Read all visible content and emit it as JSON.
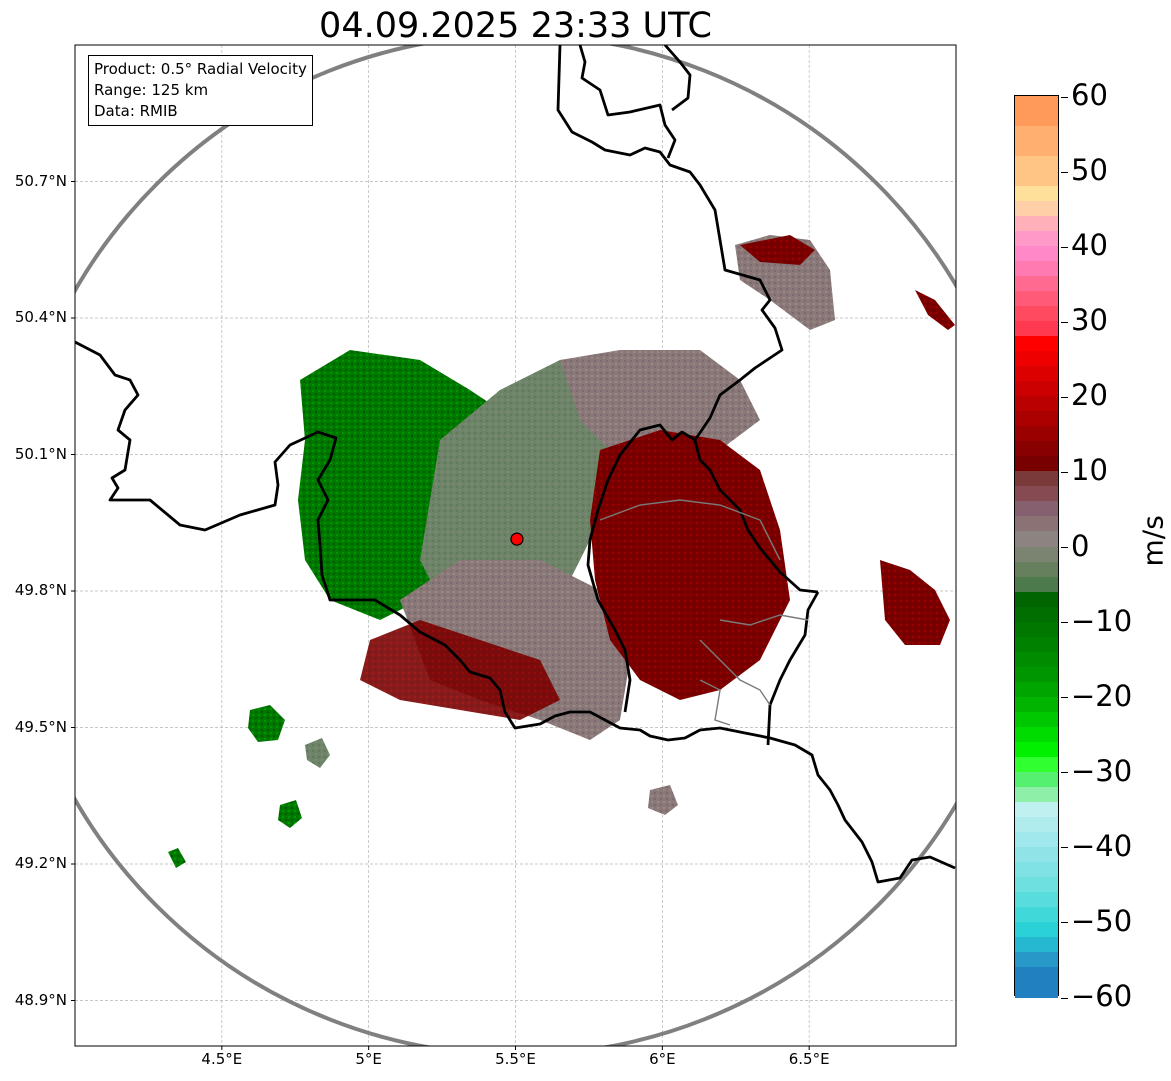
{
  "title": "04.09.2025 23:33 UTC",
  "info": {
    "product": "Product: 0.5° Radial Velocity",
    "range": "Range: 125 km",
    "data": "Data: RMIB"
  },
  "axes": {
    "lat_labels": [
      "50.7°N",
      "50.4°N",
      "50.1°N",
      "49.8°N",
      "49.5°N",
      "49.2°N",
      "48.9°N"
    ],
    "lon_labels": [
      "4.5°E",
      "5°E",
      "5.5°E",
      "6°E",
      "6.5°E"
    ],
    "lat_values": [
      50.7,
      50.4,
      50.1,
      49.8,
      49.5,
      49.2,
      48.9
    ],
    "lon_values": [
      4.5,
      5.0,
      5.5,
      6.0,
      6.5
    ],
    "lon_range": [
      4.0,
      7.0
    ],
    "lat_range": [
      48.8,
      51.0
    ],
    "grid": true
  },
  "radar_site": {
    "lon": 5.505,
    "lat": 49.914
  },
  "range_ring_km": 125,
  "colorbar": {
    "unit": "m/s",
    "vmin": -60,
    "vmax": 60,
    "ticks": [
      {
        "value": 60,
        "label": "60"
      },
      {
        "value": 50,
        "label": "50"
      },
      {
        "value": 40,
        "label": "40"
      },
      {
        "value": 30,
        "label": "30"
      },
      {
        "value": 20,
        "label": "20"
      },
      {
        "value": 10,
        "label": "10"
      },
      {
        "value": 0,
        "label": "0"
      },
      {
        "value": -10,
        "label": "−10"
      },
      {
        "value": -20,
        "label": "−20"
      },
      {
        "value": -30,
        "label": "−30"
      },
      {
        "value": -40,
        "label": "−40"
      },
      {
        "value": -50,
        "label": "−50"
      },
      {
        "value": -60,
        "label": "−60"
      }
    ],
    "bands": [
      {
        "from": 56,
        "to": 60,
        "color": "#ff9a5a"
      },
      {
        "from": 52,
        "to": 56,
        "color": "#ffb070"
      },
      {
        "from": 48,
        "to": 52,
        "color": "#ffc585"
      },
      {
        "from": 46,
        "to": 48,
        "color": "#ffe09a"
      },
      {
        "from": 44,
        "to": 46,
        "color": "#ffd0a8"
      },
      {
        "from": 42,
        "to": 44,
        "color": "#ffb0b8"
      },
      {
        "from": 40,
        "to": 42,
        "color": "#ff9ac8"
      },
      {
        "from": 38,
        "to": 40,
        "color": "#ff88c8"
      },
      {
        "from": 36,
        "to": 38,
        "color": "#ff7ab0"
      },
      {
        "from": 34,
        "to": 36,
        "color": "#ff6a90"
      },
      {
        "from": 32,
        "to": 34,
        "color": "#ff5a78"
      },
      {
        "from": 30,
        "to": 32,
        "color": "#ff4a60"
      },
      {
        "from": 28,
        "to": 30,
        "color": "#ff3a50"
      },
      {
        "from": 26,
        "to": 28,
        "color": "#ff0000"
      },
      {
        "from": 24,
        "to": 26,
        "color": "#ee0000"
      },
      {
        "from": 22,
        "to": 24,
        "color": "#dd0000"
      },
      {
        "from": 20,
        "to": 22,
        "color": "#cc0000"
      },
      {
        "from": 18,
        "to": 20,
        "color": "#bb0000"
      },
      {
        "from": 16,
        "to": 18,
        "color": "#aa0000"
      },
      {
        "from": 14,
        "to": 16,
        "color": "#990000"
      },
      {
        "from": 12,
        "to": 14,
        "color": "#880000"
      },
      {
        "from": 10,
        "to": 12,
        "color": "#780000"
      },
      {
        "from": 8,
        "to": 10,
        "color": "#7a3a3a"
      },
      {
        "from": 6,
        "to": 8,
        "color": "#854a52"
      },
      {
        "from": 4,
        "to": 6,
        "color": "#876070"
      },
      {
        "from": 2,
        "to": 4,
        "color": "#8a7275"
      },
      {
        "from": 0,
        "to": 2,
        "color": "#8c8480"
      },
      {
        "from": -2,
        "to": 0,
        "color": "#7a8470"
      },
      {
        "from": -4,
        "to": -2,
        "color": "#66805e"
      },
      {
        "from": -6,
        "to": -4,
        "color": "#4d7a4d"
      },
      {
        "from": -8,
        "to": -6,
        "color": "#006400"
      },
      {
        "from": -10,
        "to": -8,
        "color": "#006e00"
      },
      {
        "from": -12,
        "to": -10,
        "color": "#007800"
      },
      {
        "from": -14,
        "to": -12,
        "color": "#008200"
      },
      {
        "from": -16,
        "to": -14,
        "color": "#008c00"
      },
      {
        "from": -18,
        "to": -16,
        "color": "#009600"
      },
      {
        "from": -20,
        "to": -18,
        "color": "#00a500"
      },
      {
        "from": -22,
        "to": -20,
        "color": "#00b400"
      },
      {
        "from": -24,
        "to": -22,
        "color": "#00c800"
      },
      {
        "from": -26,
        "to": -24,
        "color": "#00dc00"
      },
      {
        "from": -28,
        "to": -26,
        "color": "#00f000"
      },
      {
        "from": -30,
        "to": -28,
        "color": "#30ff30"
      },
      {
        "from": -32,
        "to": -30,
        "color": "#55f070"
      },
      {
        "from": -34,
        "to": -32,
        "color": "#8ef0a8"
      },
      {
        "from": -36,
        "to": -34,
        "color": "#c0f0f0"
      },
      {
        "from": -38,
        "to": -36,
        "color": "#b0ecee"
      },
      {
        "from": -40,
        "to": -38,
        "color": "#a0e8ec"
      },
      {
        "from": -42,
        "to": -40,
        "color": "#90e4e8"
      },
      {
        "from": -44,
        "to": -42,
        "color": "#80e2e4"
      },
      {
        "from": -46,
        "to": -44,
        "color": "#6ee0e0"
      },
      {
        "from": -48,
        "to": -46,
        "color": "#58dcdc"
      },
      {
        "from": -50,
        "to": -48,
        "color": "#40d8d8"
      },
      {
        "from": -52,
        "to": -50,
        "color": "#2ad2d8"
      },
      {
        "from": -54,
        "to": -52,
        "color": "#26b8d0"
      },
      {
        "from": -56,
        "to": -54,
        "color": "#2898c8"
      },
      {
        "from": -60,
        "to": -56,
        "color": "#2080c0"
      }
    ]
  },
  "colors": {
    "receding": "#7a0000",
    "approaching": "#007a00",
    "near_zero_neg": "#6a8a66",
    "near_zero_pos": "#8a6a70",
    "ring": "#808080",
    "border": "#000000",
    "site_marker": "#ff0000"
  }
}
